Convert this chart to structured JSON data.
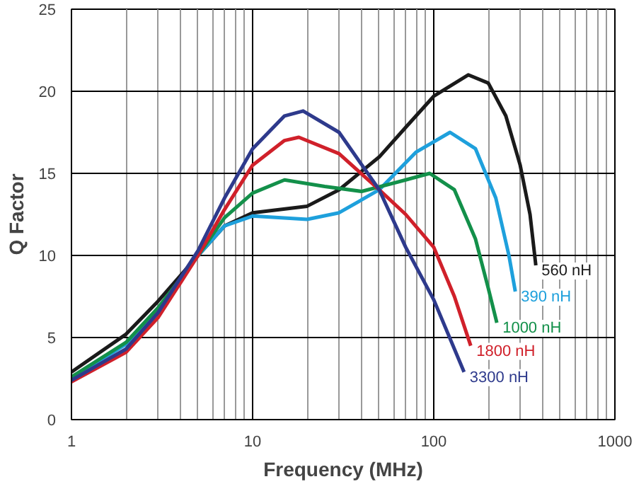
{
  "chart_data": {
    "type": "line",
    "xlabel": "Frequency (MHz)",
    "ylabel": "Q Factor",
    "log": "x",
    "grid": true,
    "xlim": [
      1,
      1000
    ],
    "xticks": [
      1,
      10,
      100,
      1000
    ],
    "ylim": [
      0,
      25
    ],
    "yticks": [
      0,
      5,
      10,
      15,
      20,
      25
    ],
    "series": [
      {
        "name": "560 nH",
        "color": "#1a1a1a",
        "x": [
          1,
          2,
          3,
          5,
          7,
          10,
          20,
          30,
          50,
          70,
          100,
          155,
          200,
          250,
          300,
          340,
          366
        ],
        "values": [
          2.9,
          5.2,
          7.2,
          10.0,
          11.8,
          12.6,
          13.0,
          14.0,
          16.0,
          17.8,
          19.7,
          21.0,
          20.5,
          18.5,
          15.5,
          12.5,
          9.4
        ]
      },
      {
        "name": "390 nH",
        "color": "#1ea0dc",
        "x": [
          1,
          2,
          3,
          5,
          7,
          10,
          20,
          30,
          50,
          80,
          123,
          170,
          220,
          260,
          282
        ],
        "values": [
          2.5,
          4.6,
          6.7,
          10.0,
          11.8,
          12.4,
          12.2,
          12.6,
          14.0,
          16.3,
          17.5,
          16.5,
          13.5,
          10.0,
          7.8
        ]
      },
      {
        "name": "1000 nH",
        "color": "#13904a",
        "x": [
          1,
          2,
          3,
          5,
          7,
          10,
          15,
          25,
          40,
          70,
          95,
          130,
          170,
          200,
          223
        ],
        "values": [
          2.6,
          4.7,
          6.8,
          10.0,
          12.3,
          13.8,
          14.6,
          14.2,
          13.9,
          14.6,
          15.0,
          14.0,
          11.0,
          8.0,
          5.9
        ]
      },
      {
        "name": "1800 nH",
        "color": "#d0202a",
        "x": [
          1,
          2,
          3,
          5,
          7,
          10,
          15,
          18,
          30,
          50,
          70,
          100,
          130,
          160
        ],
        "values": [
          2.3,
          4.1,
          6.2,
          10.0,
          12.8,
          15.5,
          17.0,
          17.2,
          16.2,
          14.0,
          12.5,
          10.5,
          7.5,
          4.5
        ]
      },
      {
        "name": "3300 nH",
        "color": "#2e3a8c",
        "x": [
          1,
          2,
          3,
          5,
          7,
          10,
          15,
          19,
          30,
          50,
          70,
          100,
          147
        ],
        "values": [
          2.4,
          4.3,
          6.5,
          10.3,
          13.5,
          16.5,
          18.5,
          18.8,
          17.5,
          14.0,
          10.5,
          7.3,
          2.9
        ]
      }
    ]
  }
}
